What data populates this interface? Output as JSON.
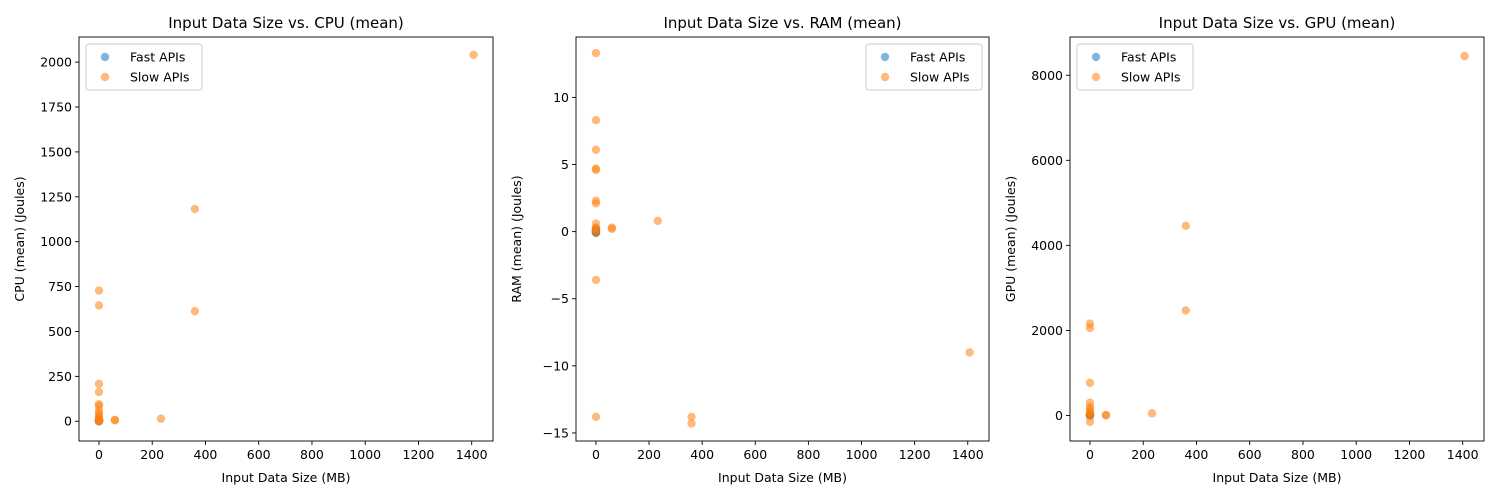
{
  "colors": {
    "fast": "#1f77b4",
    "slow": "#ff7f0e",
    "frame": "#000000",
    "legend_border": "#cccccc"
  },
  "chart_data": [
    {
      "type": "scatter",
      "title": "Input Data Size vs. CPU (mean)",
      "xlabel": "Input Data Size (MB)",
      "ylabel": "CPU (mean) (Joules)",
      "xlim": [
        -75,
        1480
      ],
      "ylim": [
        -110,
        2140
      ],
      "xticks": [
        0,
        200,
        400,
        600,
        800,
        1000,
        1200,
        1400
      ],
      "xtick_labels": [
        "0",
        "200",
        "400",
        "600",
        "800",
        "1000",
        "1200",
        "1400"
      ],
      "yticks": [
        0,
        250,
        500,
        750,
        1000,
        1250,
        1500,
        1750,
        2000
      ],
      "ytick_labels": [
        "0",
        "250",
        "500",
        "750",
        "1000",
        "1250",
        "1500",
        "1750",
        "2000"
      ],
      "grid": false,
      "legend": "top-left",
      "series": [
        {
          "name": "Fast APIs",
          "color": "#1f77b4",
          "x": [
            0,
            0,
            0.2,
            0.4,
            0.1,
            0.3,
            0,
            0.5
          ],
          "y": [
            0,
            2,
            5,
            1,
            8,
            3,
            6,
            4
          ]
        },
        {
          "name": "Slow APIs",
          "color": "#ff7f0e",
          "x": [
            1407,
            360,
            360,
            0,
            0,
            0,
            0,
            0,
            0,
            0,
            0,
            0,
            0,
            0,
            0,
            0,
            60,
            60,
            233,
            0,
            0
          ],
          "y": [
            2040,
            1182,
            613,
            728,
            645,
            208,
            163,
            95,
            85,
            60,
            45,
            30,
            20,
            12,
            5,
            2,
            5,
            8,
            14,
            0,
            3
          ]
        }
      ]
    },
    {
      "type": "scatter",
      "title": "Input Data Size vs. RAM (mean)",
      "xlabel": "Input Data Size (MB)",
      "ylabel": "RAM (mean) (Joules)",
      "xlim": [
        -75,
        1480
      ],
      "ylim": [
        -15.6,
        14.5
      ],
      "xticks": [
        0,
        200,
        400,
        600,
        800,
        1000,
        1200,
        1400
      ],
      "xtick_labels": [
        "0",
        "200",
        "400",
        "600",
        "800",
        "1000",
        "1200",
        "1400"
      ],
      "yticks": [
        -15,
        -10,
        -5,
        0,
        5,
        10
      ],
      "ytick_labels": [
        "−15",
        "−10",
        "−5",
        "0",
        "5",
        "10"
      ],
      "grid": false,
      "legend": "top-right",
      "series": [
        {
          "name": "Fast APIs",
          "color": "#1f77b4",
          "x": [
            0,
            0.2,
            0.4,
            0.1,
            0.3,
            0
          ],
          "y": [
            0,
            0.1,
            -0.1,
            0.2,
            0.05,
            -0.05
          ]
        },
        {
          "name": "Slow APIs",
          "color": "#ff7f0e",
          "x": [
            0,
            0,
            0,
            0,
            0,
            0,
            0,
            0,
            0,
            0,
            0,
            0,
            0,
            0,
            60,
            60,
            233,
            360,
            360,
            1407
          ],
          "y": [
            13.3,
            8.3,
            6.1,
            4.7,
            4.6,
            2.3,
            2.1,
            0.6,
            0.3,
            0.2,
            0.1,
            -0.1,
            -3.6,
            -13.8,
            0.3,
            0.2,
            0.8,
            -13.8,
            -14.3,
            -9.0
          ]
        }
      ]
    },
    {
      "type": "scatter",
      "title": "Input Data Size vs. GPU (mean)",
      "xlabel": "Input Data Size (MB)",
      "ylabel": "GPU (mean) (Joules)",
      "xlim": [
        -75,
        1480
      ],
      "ylim": [
        -600,
        8900
      ],
      "xticks": [
        0,
        200,
        400,
        600,
        800,
        1000,
        1200,
        1400
      ],
      "xtick_labels": [
        "0",
        "200",
        "400",
        "600",
        "800",
        "1000",
        "1200",
        "1400"
      ],
      "yticks": [
        0,
        2000,
        4000,
        6000,
        8000
      ],
      "ytick_labels": [
        "0",
        "2000",
        "4000",
        "6000",
        "8000"
      ],
      "grid": false,
      "legend": "top-left",
      "series": [
        {
          "name": "Fast APIs",
          "color": "#1f77b4",
          "x": [
            0,
            0.2,
            0.4,
            0.1,
            0.3,
            0
          ],
          "y": [
            0,
            10,
            5,
            20,
            2,
            8
          ]
        },
        {
          "name": "Slow APIs",
          "color": "#ff7f0e",
          "x": [
            1407,
            360,
            360,
            0,
            0,
            0,
            0,
            0,
            0,
            0,
            0,
            0,
            0,
            0,
            60,
            60,
            233
          ],
          "y": [
            8450,
            4460,
            2470,
            2160,
            2060,
            770,
            300,
            200,
            150,
            100,
            50,
            20,
            0,
            -150,
            10,
            5,
            50
          ]
        }
      ]
    }
  ]
}
